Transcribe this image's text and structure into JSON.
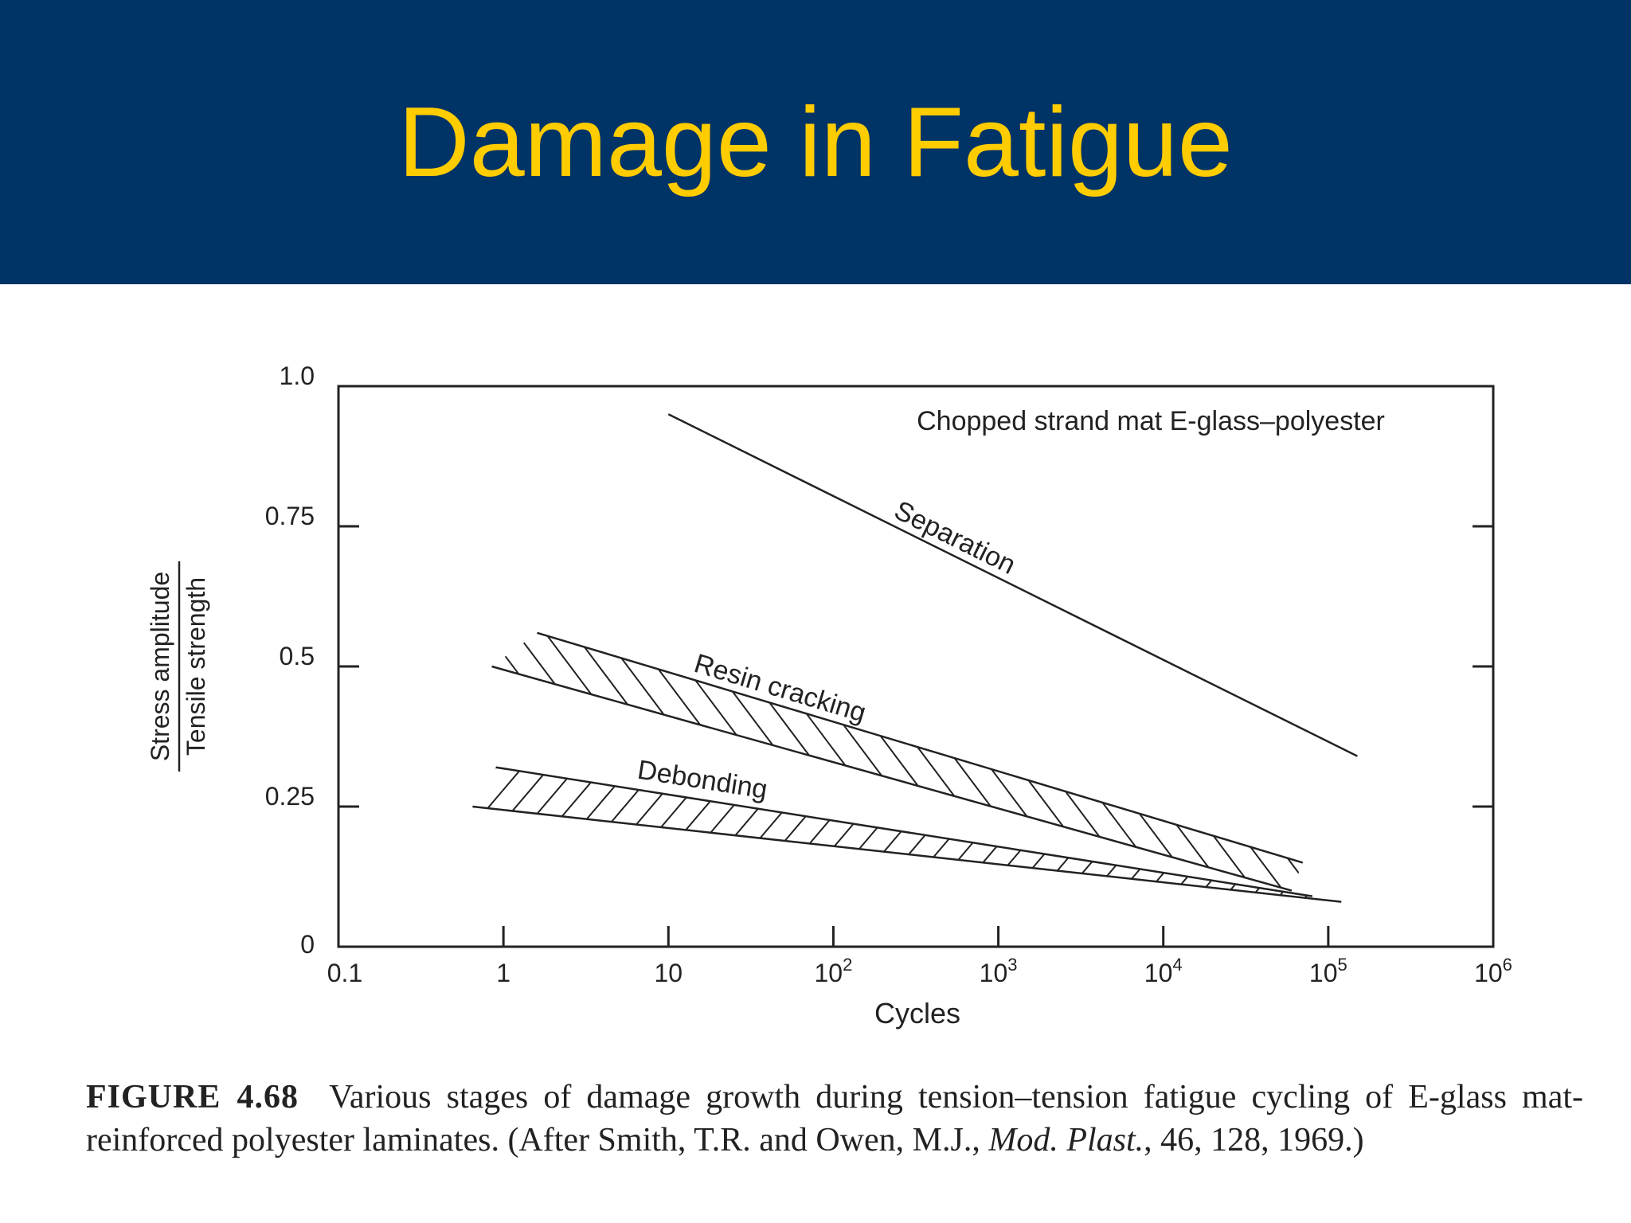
{
  "slide": {
    "title": "Damage in Fatigue",
    "header_color": "#003366",
    "title_color": "#ffcc00"
  },
  "chart_data": {
    "type": "line",
    "subtitle": "Chopped strand mat E-glass–polyester",
    "xlabel": "Cycles",
    "ylabel_numerator": "Stress amplitude",
    "ylabel_denominator": "Tensile strength",
    "x_scale": "log",
    "xlim": [
      0.1,
      1000000
    ],
    "ylim": [
      0,
      1.0
    ],
    "x_ticks": [
      {
        "value": 0.1,
        "base": "0.1",
        "exp": ""
      },
      {
        "value": 1,
        "base": "1",
        "exp": ""
      },
      {
        "value": 10,
        "base": "10",
        "exp": ""
      },
      {
        "value": 100,
        "base": "10",
        "exp": "2"
      },
      {
        "value": 1000,
        "base": "10",
        "exp": "3"
      },
      {
        "value": 10000,
        "base": "10",
        "exp": "4"
      },
      {
        "value": 100000,
        "base": "10",
        "exp": "5"
      },
      {
        "value": 1000000,
        "base": "10",
        "exp": "6"
      }
    ],
    "y_ticks": [
      {
        "value": 0,
        "label": "0"
      },
      {
        "value": 0.25,
        "label": "0.25"
      },
      {
        "value": 0.5,
        "label": "0.5"
      },
      {
        "value": 0.75,
        "label": "0.75"
      },
      {
        "value": 1.0,
        "label": "1.0"
      }
    ],
    "grid": false,
    "series": [
      {
        "name": "Separation",
        "type": "line",
        "x": [
          10,
          150000
        ],
        "y": [
          0.95,
          0.34
        ]
      },
      {
        "name": "Resin cracking",
        "type": "band",
        "x_upper": [
          1.6,
          70000
        ],
        "y_upper": [
          0.56,
          0.15
        ],
        "x_lower": [
          0.85,
          60000
        ],
        "y_lower": [
          0.5,
          0.1
        ]
      },
      {
        "name": "Debonding",
        "type": "band",
        "x_upper": [
          0.9,
          80000
        ],
        "y_upper": [
          0.32,
          0.09
        ],
        "x_lower": [
          0.65,
          120000
        ],
        "y_lower": [
          0.25,
          0.08
        ]
      }
    ],
    "caption": {
      "label": "FIGURE 4.68",
      "text": "Various stages of damage growth during tension–tension fatigue cycling of E-glass mat-reinforced polyester laminates. (After Smith, T.R. and Owen, M.J.,",
      "journal": "Mod. Plast.",
      "ref": ", 46, 128, 1969.)"
    }
  }
}
